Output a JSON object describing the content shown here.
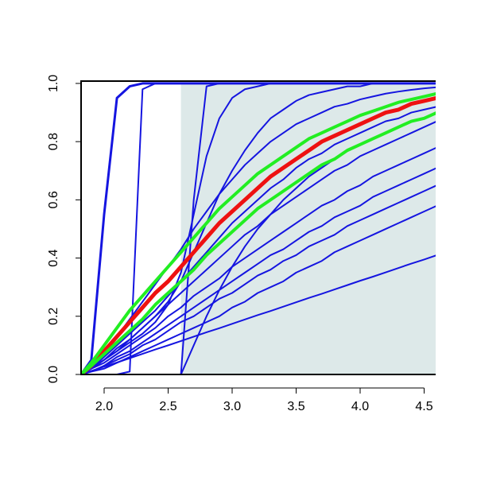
{
  "chart_data": {
    "type": "line",
    "x": [
      1.82,
      1.9,
      2.0,
      2.1,
      2.2,
      2.3,
      2.4,
      2.5,
      2.6,
      2.7,
      2.8,
      2.9,
      3.0,
      3.1,
      3.2,
      3.3,
      3.4,
      3.5,
      3.6,
      3.7,
      3.8,
      3.9,
      4.0,
      4.1,
      4.2,
      4.3,
      4.4,
      4.5,
      4.6
    ],
    "xlim": [
      1.82,
      4.59
    ],
    "ylim": [
      0,
      1.008
    ],
    "xticks": [
      {
        "value": 2,
        "label": "2.0"
      },
      {
        "value": 2.5,
        "label": "2.5"
      },
      {
        "value": 3,
        "label": "3.0"
      },
      {
        "value": 3.5,
        "label": "3.5"
      },
      {
        "value": 4,
        "label": "4.0"
      },
      {
        "value": 4.5,
        "label": "4.5"
      }
    ],
    "yticks": [
      {
        "value": 0,
        "label": "0.0"
      },
      {
        "value": 0.2,
        "label": "0.2"
      },
      {
        "value": 0.4,
        "label": "0.4"
      },
      {
        "value": 0.6,
        "label": "0.6"
      },
      {
        "value": 0.8,
        "label": "0.8"
      },
      {
        "value": 1,
        "label": "1.0"
      }
    ],
    "shade": {
      "x": [
        2.6,
        4.6
      ],
      "y": [
        0,
        1
      ],
      "color": "#dde9e9"
    },
    "series": [
      {
        "color": "#1515e0",
        "line_width": 3,
        "values": [
          0,
          0.05,
          0.55,
          0.95,
          0.99,
          1,
          1,
          1,
          1,
          1,
          1,
          1,
          1,
          1,
          1,
          1,
          1,
          1,
          1,
          1,
          1,
          1,
          1,
          1,
          1,
          1,
          1,
          1,
          1
        ]
      },
      {
        "color": "#1515e0",
        "line_width": 2,
        "values": [
          0,
          0,
          0,
          0,
          0.01,
          0.98,
          1,
          1,
          1,
          1,
          1,
          1,
          1,
          1,
          1,
          1,
          1,
          1,
          1,
          1,
          1,
          1,
          1,
          1,
          1,
          1,
          1,
          1,
          1
        ]
      },
      {
        "color": "#1515e0",
        "line_width": 2,
        "values": [
          0,
          0,
          0,
          0,
          0,
          0,
          0,
          0,
          0,
          0.6,
          0.99,
          1,
          1,
          1,
          1,
          1,
          1,
          1,
          1,
          1,
          1,
          1,
          1,
          1,
          1,
          1,
          1,
          1,
          1
        ]
      },
      {
        "color": "#1515e0",
        "line_width": 2,
        "values": [
          0,
          0.02,
          0.05,
          0.08,
          0.11,
          0.14,
          0.18,
          0.24,
          0.35,
          0.55,
          0.75,
          0.88,
          0.95,
          0.98,
          0.99,
          1,
          1,
          1,
          1,
          1,
          1,
          1,
          1,
          1,
          1,
          1,
          1,
          1,
          1
        ]
      },
      {
        "color": "#1515e0",
        "line_width": 2,
        "values": [
          0,
          0.02,
          0.05,
          0.08,
          0.12,
          0.16,
          0.2,
          0.25,
          0.32,
          0.42,
          0.52,
          0.62,
          0.7,
          0.77,
          0.83,
          0.88,
          0.91,
          0.94,
          0.96,
          0.97,
          0.98,
          0.99,
          0.99,
          1,
          1,
          1,
          1,
          1,
          1
        ]
      },
      {
        "color": "#1515e0",
        "line_width": 2,
        "values": [
          0,
          0.03,
          0.08,
          0.13,
          0.19,
          0.25,
          0.31,
          0.37,
          0.43,
          0.5,
          0.56,
          0.62,
          0.67,
          0.72,
          0.76,
          0.8,
          0.83,
          0.86,
          0.88,
          0.9,
          0.92,
          0.93,
          0.945,
          0.955,
          0.965,
          0.972,
          0.978,
          0.983,
          0.987
        ]
      },
      {
        "color": "#1515e0",
        "line_width": 2,
        "values": [
          0,
          0.02,
          0.06,
          0.1,
          0.14,
          0.18,
          0.22,
          0.27,
          0.32,
          0.37,
          0.42,
          0.47,
          0.52,
          0.56,
          0.6,
          0.64,
          0.67,
          0.71,
          0.74,
          0.76,
          0.79,
          0.81,
          0.83,
          0.85,
          0.87,
          0.88,
          0.9,
          0.91,
          0.92
        ]
      },
      {
        "color": "#1515e0",
        "line_width": 2,
        "values": [
          0,
          0.02,
          0.05,
          0.09,
          0.12,
          0.16,
          0.2,
          0.24,
          0.28,
          0.32,
          0.36,
          0.4,
          0.44,
          0.48,
          0.51,
          0.55,
          0.58,
          0.61,
          0.64,
          0.67,
          0.7,
          0.72,
          0.75,
          0.77,
          0.79,
          0.81,
          0.83,
          0.85,
          0.87
        ]
      },
      {
        "color": "#1515e0",
        "line_width": 2,
        "values": [
          0,
          0.02,
          0.04,
          0.07,
          0.1,
          0.13,
          0.16,
          0.2,
          0.23,
          0.27,
          0.3,
          0.33,
          0.37,
          0.4,
          0.43,
          0.46,
          0.49,
          0.52,
          0.55,
          0.58,
          0.6,
          0.63,
          0.65,
          0.68,
          0.7,
          0.72,
          0.74,
          0.76,
          0.78
        ]
      },
      {
        "color": "#1515e0",
        "line_width": 2,
        "values": [
          0,
          0.01,
          0.03,
          0.06,
          0.08,
          0.11,
          0.14,
          0.17,
          0.2,
          0.23,
          0.26,
          0.29,
          0.32,
          0.35,
          0.38,
          0.41,
          0.43,
          0.46,
          0.49,
          0.51,
          0.54,
          0.56,
          0.58,
          0.61,
          0.63,
          0.65,
          0.67,
          0.69,
          0.71
        ]
      },
      {
        "color": "#1515e0",
        "line_width": 2,
        "values": [
          0,
          0.01,
          0.03,
          0.05,
          0.07,
          0.1,
          0.12,
          0.15,
          0.18,
          0.2,
          0.23,
          0.26,
          0.28,
          0.31,
          0.34,
          0.36,
          0.39,
          0.41,
          0.44,
          0.46,
          0.48,
          0.51,
          0.53,
          0.55,
          0.57,
          0.59,
          0.61,
          0.63,
          0.65
        ]
      },
      {
        "color": "#1515e0",
        "line_width": 2,
        "values": [
          0,
          0.01,
          0.02,
          0.04,
          0.06,
          0.08,
          0.1,
          0.12,
          0.14,
          0.16,
          0.18,
          0.2,
          0.23,
          0.25,
          0.28,
          0.3,
          0.32,
          0.35,
          0.37,
          0.39,
          0.42,
          0.44,
          0.46,
          0.48,
          0.5,
          0.52,
          0.54,
          0.56,
          0.58
        ]
      },
      {
        "color": "#1515e0",
        "line_width": 2,
        "values": [
          0,
          0.012,
          0.027,
          0.041,
          0.056,
          0.071,
          0.086,
          0.1,
          0.115,
          0.13,
          0.145,
          0.159,
          0.174,
          0.189,
          0.204,
          0.218,
          0.233,
          0.248,
          0.263,
          0.277,
          0.292,
          0.307,
          0.322,
          0.336,
          0.351,
          0.366,
          0.381,
          0.395,
          0.41
        ]
      },
      {
        "color": "#1515e0",
        "line_width": 2,
        "values": [
          0,
          0,
          0,
          0,
          0,
          0,
          0,
          0,
          0,
          0.1,
          0.2,
          0.29,
          0.37,
          0.44,
          0.5,
          0.55,
          0.6,
          0.64,
          0.68,
          0.71,
          0.74,
          0.77,
          0.79,
          0.81,
          0.83,
          0.85,
          0.87,
          0.88,
          0.9
        ]
      },
      {
        "color": "#ee1111",
        "line_width": 5,
        "values": [
          0,
          0.03,
          0.08,
          0.13,
          0.18,
          0.23,
          0.28,
          0.32,
          0.37,
          0.42,
          0.47,
          0.52,
          0.56,
          0.6,
          0.64,
          0.68,
          0.71,
          0.74,
          0.77,
          0.8,
          0.82,
          0.84,
          0.86,
          0.88,
          0.9,
          0.91,
          0.93,
          0.94,
          0.95
        ]
      },
      {
        "color": "#22ee22",
        "line_width": 4,
        "values": [
          0,
          0.04,
          0.1,
          0.16,
          0.22,
          0.27,
          0.32,
          0.37,
          0.42,
          0.47,
          0.52,
          0.57,
          0.61,
          0.65,
          0.69,
          0.72,
          0.75,
          0.78,
          0.81,
          0.83,
          0.85,
          0.87,
          0.89,
          0.905,
          0.92,
          0.935,
          0.945,
          0.955,
          0.965
        ]
      },
      {
        "color": "#22ee22",
        "line_width": 4,
        "values": [
          0,
          0.03,
          0.07,
          0.11,
          0.15,
          0.19,
          0.24,
          0.28,
          0.32,
          0.36,
          0.41,
          0.45,
          0.49,
          0.53,
          0.57,
          0.6,
          0.63,
          0.66,
          0.69,
          0.72,
          0.74,
          0.77,
          0.79,
          0.81,
          0.83,
          0.85,
          0.87,
          0.88,
          0.9
        ]
      }
    ]
  }
}
